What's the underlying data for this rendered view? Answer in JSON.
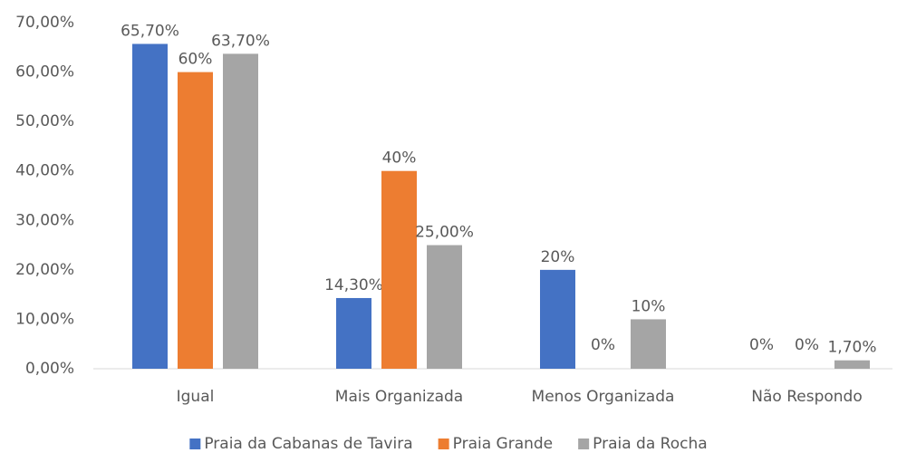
{
  "chart_data": {
    "type": "bar",
    "categories": [
      "Igual",
      "Mais Organizada",
      "Menos Organizada",
      "Não Respondo"
    ],
    "series": [
      {
        "name": "Praia da Cabanas de Tavira",
        "color": "#4472c4",
        "values": [
          65.7,
          14.3,
          20,
          0
        ],
        "value_labels": [
          "65,70%",
          "14,30%",
          "20%",
          "0%"
        ]
      },
      {
        "name": "Praia Grande",
        "color": "#ed7d31",
        "values": [
          60,
          40,
          0,
          0
        ],
        "value_labels": [
          "60%",
          "40%",
          "0%",
          "0%"
        ]
      },
      {
        "name": "Praia da Rocha",
        "color": "#a5a5a5",
        "values": [
          63.7,
          25,
          10,
          1.7
        ],
        "value_labels": [
          "63,70%",
          "25,00%",
          "10%",
          "1,70%"
        ]
      }
    ],
    "ylim": [
      0,
      70
    ],
    "yticks": [
      {
        "value": 0,
        "label": "0,00%"
      },
      {
        "value": 10,
        "label": "10,00%"
      },
      {
        "value": 20,
        "label": "20,00%"
      },
      {
        "value": 30,
        "label": "30,00%"
      },
      {
        "value": 40,
        "label": "40,00%"
      },
      {
        "value": 50,
        "label": "50,00%"
      },
      {
        "value": 60,
        "label": "60,00%"
      },
      {
        "value": 70,
        "label": "70,00%"
      }
    ],
    "grid": false,
    "legend": "bottom"
  }
}
